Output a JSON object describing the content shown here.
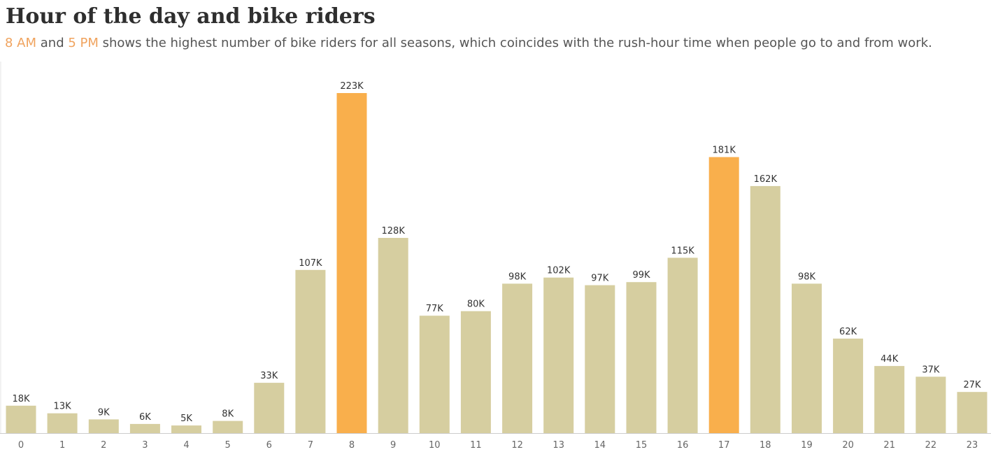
{
  "chart_data": {
    "type": "bar",
    "title": "Hour of the day and bike riders",
    "subtitle": {
      "highlight1": "8 AM",
      "text1": " and ",
      "highlight2": "5 PM",
      "text2": " shows the highest number of bike riders for all seasons, which coincides with the rush-hour time when people go to and from work."
    },
    "categories": [
      "0",
      "1",
      "2",
      "3",
      "4",
      "5",
      "6",
      "7",
      "8",
      "9",
      "10",
      "11",
      "12",
      "13",
      "14",
      "15",
      "16",
      "17",
      "18",
      "19",
      "20",
      "21",
      "22",
      "23"
    ],
    "values": [
      18,
      13,
      9,
      6,
      5,
      8,
      33,
      107,
      223,
      128,
      77,
      80,
      98,
      102,
      97,
      99,
      115,
      181,
      162,
      98,
      62,
      44,
      37,
      27
    ],
    "value_labels": [
      "18K",
      "13K",
      "9K",
      "6K",
      "5K",
      "8K",
      "33K",
      "107K",
      "223K",
      "128K",
      "77K",
      "80K",
      "98K",
      "102K",
      "97K",
      "99K",
      "115K",
      "181K",
      "162K",
      "98K",
      "62K",
      "44K",
      "37K",
      "27K"
    ],
    "value_unit": "thousands of riders",
    "highlighted": [
      "8",
      "17"
    ],
    "colors": {
      "bar": "#d6cea0",
      "highlight": "#f9af4c",
      "highlight_text": "#f0a35e",
      "axis": "#cccccc"
    },
    "xlabel": "",
    "ylabel": "",
    "ylim": [
      0,
      223
    ],
    "grid": false,
    "legend": "none"
  }
}
